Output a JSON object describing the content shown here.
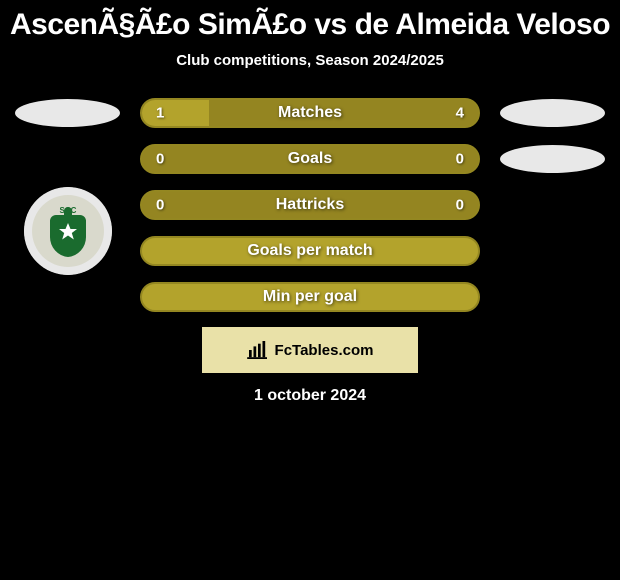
{
  "title": "AscenÃ§Ã£o SimÃ£o vs de Almeida Veloso",
  "subtitle": "Club competitions, Season 2024/2025",
  "footer_date": "1 october 2024",
  "widget": {
    "brand": "FcTables.com"
  },
  "colors": {
    "bar_bg": "#948521",
    "bar_fill": "#b3a32c",
    "bar_border": "#948721",
    "background": "#000000",
    "text": "#ffffff",
    "widget_bg": "#e9e1a8",
    "oval": "#e8e8e8",
    "badge_green": "#1a6b2e"
  },
  "rows": [
    {
      "label": "Matches",
      "left_val": "1",
      "right_val": "4",
      "fill_left_pct": 20,
      "show_oval_left": true,
      "show_oval_right": true
    },
    {
      "label": "Goals",
      "left_val": "0",
      "right_val": "0",
      "fill_left_pct": 0,
      "show_oval_left": false,
      "show_oval_right": true
    },
    {
      "label": "Hattricks",
      "left_val": "0",
      "right_val": "0",
      "fill_left_pct": 0,
      "show_oval_left": false,
      "show_oval_right": false
    },
    {
      "label": "Goals per match",
      "left_val": "",
      "right_val": "",
      "fill_left_pct": 100,
      "show_oval_left": false,
      "show_oval_right": false
    },
    {
      "label": "Min per goal",
      "left_val": "",
      "right_val": "",
      "fill_left_pct": 100,
      "show_oval_left": false,
      "show_oval_right": false
    }
  ],
  "badge": {
    "letters": "SCC",
    "ring_color": "#d9d9cc",
    "center_color": "#1a6b2e"
  }
}
